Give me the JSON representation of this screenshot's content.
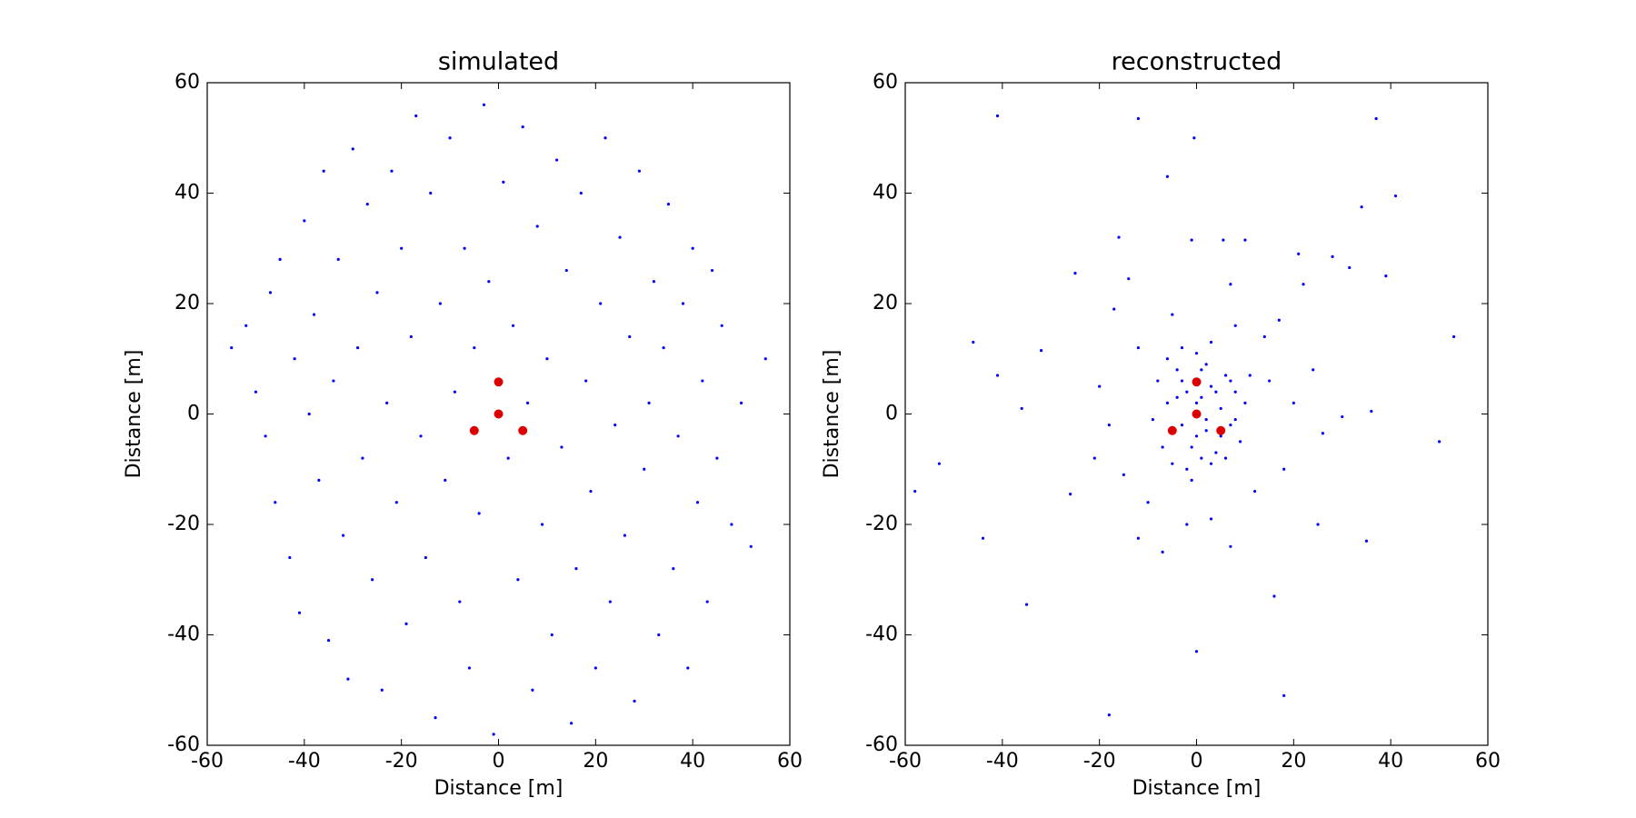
{
  "chart_data": [
    {
      "type": "scatter",
      "title": "simulated",
      "xlabel": "Distance [m]",
      "ylabel": "Distance [m]",
      "xlim": [
        -60,
        60
      ],
      "ylim": [
        -60,
        60
      ],
      "xticks": [
        -60,
        -40,
        -20,
        0,
        20,
        40,
        60
      ],
      "yticks": [
        -60,
        -40,
        -20,
        0,
        20,
        40,
        60
      ],
      "series": [
        {
          "color": "#0000ff",
          "marker_size": 1.6,
          "x": [
            -55,
            -52,
            -50,
            -48,
            -47,
            -46,
            -45,
            -43,
            -42,
            -41,
            -40,
            -39,
            -38,
            -37,
            -36,
            -35,
            -34,
            -33,
            -32,
            -31,
            -30,
            -29,
            -28,
            -27,
            -26,
            -25,
            -24,
            -23,
            -22,
            -21,
            -20,
            -19,
            -18,
            -17,
            -16,
            -15,
            -14,
            -13,
            -12,
            -11,
            -10,
            -9,
            -8,
            -7,
            -6,
            -5,
            -4,
            -3,
            -2,
            -1,
            1,
            2,
            3,
            4,
            5,
            6,
            7,
            8,
            9,
            10,
            11,
            12,
            13,
            14,
            15,
            16,
            17,
            18,
            19,
            20,
            21,
            22,
            23,
            24,
            25,
            26,
            27,
            28,
            29,
            30,
            31,
            32,
            33,
            34,
            35,
            36,
            37,
            38,
            39,
            40,
            41,
            42,
            43,
            44,
            45,
            46,
            48,
            50,
            52,
            55
          ],
          "y": [
            12,
            16,
            4,
            -4,
            22,
            -16,
            28,
            -26,
            10,
            -36,
            35,
            0,
            18,
            -12,
            44,
            -41,
            6,
            28,
            -22,
            -48,
            48,
            12,
            -8,
            38,
            -30,
            22,
            -50,
            2,
            44,
            -16,
            30,
            -38,
            14,
            54,
            -4,
            -26,
            40,
            -55,
            20,
            -12,
            50,
            4,
            -34,
            30,
            -46,
            12,
            -18,
            56,
            24,
            -58,
            42,
            -8,
            16,
            -30,
            52,
            2,
            -50,
            34,
            -20,
            10,
            -40,
            46,
            -6,
            26,
            -56,
            -28,
            40,
            6,
            -14,
            -46,
            20,
            50,
            -34,
            -2,
            32,
            -22,
            14,
            -52,
            44,
            -10,
            2,
            24,
            -40,
            12,
            38,
            -28,
            -4,
            20,
            -46,
            30,
            -16,
            6,
            -34,
            26,
            -8,
            16,
            -20,
            2,
            -24,
            10
          ]
        },
        {
          "color": "#dd0000",
          "marker_size": 5,
          "x": [
            0,
            0,
            -5,
            5
          ],
          "y": [
            5.8,
            0,
            -3,
            -3
          ]
        }
      ]
    },
    {
      "type": "scatter",
      "title": "reconstructed",
      "xlabel": "Distance [m]",
      "ylabel": "Distance [m]",
      "xlim": [
        -60,
        60
      ],
      "ylim": [
        -60,
        60
      ],
      "xticks": [
        -60,
        -40,
        -20,
        0,
        20,
        40,
        60
      ],
      "yticks": [
        -60,
        -40,
        -20,
        0,
        20,
        40,
        60
      ],
      "series": [
        {
          "color": "#0000ff",
          "marker_size": 1.6,
          "x": [
            -41,
            -12,
            37,
            -0.5,
            -6,
            41,
            34,
            -16,
            -1,
            5.5,
            10,
            21,
            28,
            -14,
            39,
            -25,
            7,
            22,
            -17,
            31.5,
            -46,
            53,
            -41,
            -32,
            -36,
            36,
            50,
            -53,
            -58,
            -44,
            -35,
            -18,
            18,
            0,
            25,
            35,
            16,
            -12,
            -7,
            7,
            -15,
            -26,
            26,
            30,
            24,
            14,
            17,
            -21,
            -20,
            18,
            -12,
            12,
            -5,
            3,
            -2,
            20,
            -18,
            15,
            -10,
            8,
            -8,
            -6,
            -4,
            -3,
            -2,
            -1,
            0,
            1,
            2,
            3,
            4,
            5,
            6,
            7,
            8,
            9,
            10,
            -9,
            -7,
            -5,
            -4,
            -2,
            0,
            1,
            2,
            3,
            4,
            5,
            6,
            7,
            8,
            -6,
            -3,
            0,
            3,
            -1,
            2,
            -3,
            1,
            11
          ],
          "y": [
            54,
            53.5,
            53.5,
            50,
            43,
            39.5,
            37.5,
            32,
            31.5,
            31.5,
            31.5,
            29,
            28.5,
            24.5,
            25,
            25.5,
            23.5,
            23.5,
            19,
            26.5,
            13,
            14,
            7,
            11.5,
            1,
            0.5,
            -5,
            -9,
            -14,
            -22.5,
            -34.5,
            -54.5,
            -51,
            -43,
            -20,
            -23,
            -33,
            -22.5,
            -25,
            -24,
            -11,
            -14.5,
            -3.5,
            -0.5,
            8,
            14,
            17,
            -8,
            5,
            -10,
            12,
            -14,
            18,
            -19,
            -20,
            2,
            -2,
            6,
            -16,
            16,
            6,
            2,
            8,
            -2,
            4,
            -6,
            2,
            8,
            -3,
            5,
            -7,
            1,
            7,
            -2,
            4,
            -5,
            2,
            -1,
            -6,
            -9,
            3,
            -10,
            -4,
            3,
            9,
            -9,
            4,
            -4,
            -8,
            6,
            -1,
            10,
            12,
            11,
            13,
            -12,
            -1,
            6,
            -8,
            7
          ]
        },
        {
          "color": "#dd0000",
          "marker_size": 5,
          "x": [
            0,
            0,
            -5,
            5
          ],
          "y": [
            5.8,
            0,
            -3,
            -3
          ]
        }
      ]
    }
  ]
}
